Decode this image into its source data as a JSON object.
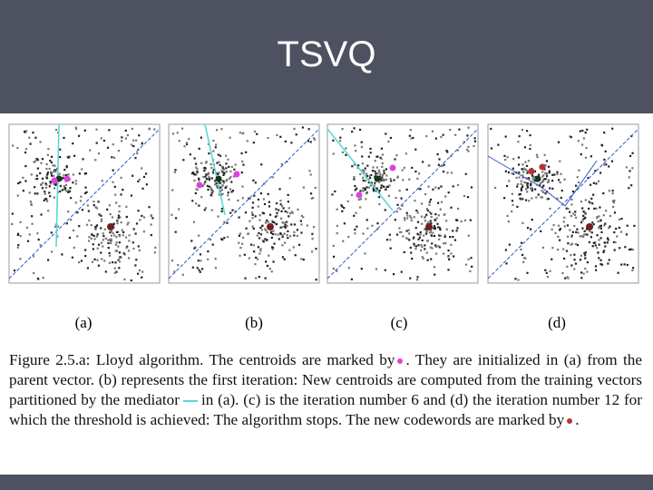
{
  "slide": {
    "title": "TSVQ",
    "panels": [
      "(a)",
      "(b)",
      "(c)",
      "(d)"
    ],
    "caption": {
      "part1": "Figure 2.5.a: Lloyd algorithm. The centroids are marked by",
      "part2": ". They are initialized in (a) from the parent vector. (b) represents the first iteration: New centroids are computed from the training vectors partitioned by the mediator",
      "part3": "in (a). (c) is the iteration number 6 and (d) the iteration number 12 for which the threshold is achieved: The algorithm stops. The new codewords are marked by",
      "part4": "."
    }
  }
}
